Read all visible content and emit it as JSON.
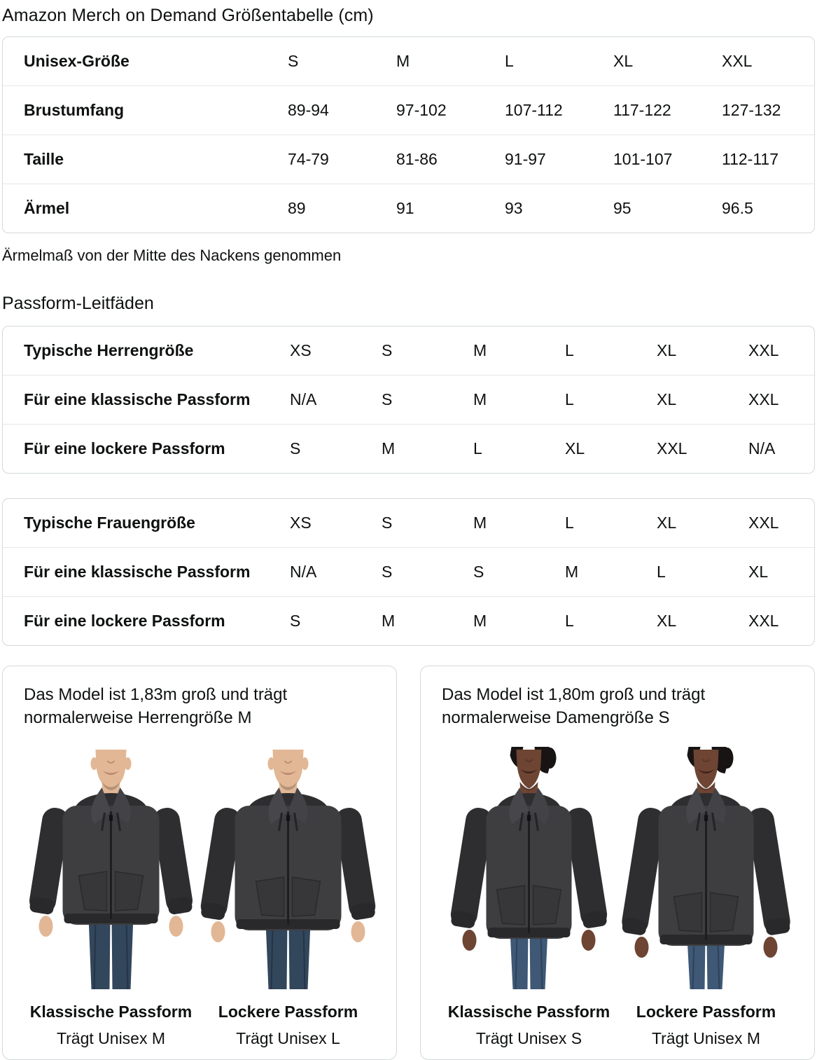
{
  "page_title": "Amazon Merch on Demand Größentabelle (cm)",
  "size_table": {
    "header_label": "Unisex-Größe",
    "header_values": [
      "S",
      "M",
      "L",
      "XL",
      "XXL"
    ],
    "rows": [
      {
        "label": "Brustumfang",
        "values": [
          "89-94",
          "97-102",
          "107-112",
          "117-122",
          "127-132"
        ]
      },
      {
        "label": "Taille",
        "values": [
          "74-79",
          "81-86",
          "91-97",
          "101-107",
          "112-117"
        ]
      },
      {
        "label": "Ärmel",
        "values": [
          "89",
          "91",
          "93",
          "95",
          "96.5"
        ]
      }
    ]
  },
  "sleeve_note": "Ärmelmaß von der Mitte des Nackens genommen",
  "fit_guides_heading": "Passform-Leitfäden",
  "fit_tables": [
    {
      "rows": [
        {
          "label": "Typische Herrengröße",
          "values": [
            "XS",
            "S",
            "M",
            "L",
            "XL",
            "XXL"
          ]
        },
        {
          "label": "Für eine klassische Passform",
          "values": [
            "N/A",
            "S",
            "M",
            "L",
            "XL",
            "XXL"
          ]
        },
        {
          "label": "Für eine lockere Passform",
          "values": [
            "S",
            "M",
            "L",
            "XL",
            "XXL",
            "N/A"
          ]
        }
      ]
    },
    {
      "rows": [
        {
          "label": "Typische Frauengröße",
          "values": [
            "XS",
            "S",
            "M",
            "L",
            "XL",
            "XXL"
          ]
        },
        {
          "label": "Für eine klassische Passform",
          "values": [
            "N/A",
            "S",
            "S",
            "M",
            "L",
            "XL"
          ]
        },
        {
          "label": "Für eine lockere Passform",
          "values": [
            "S",
            "M",
            "M",
            "L",
            "XL",
            "XXL"
          ]
        }
      ]
    }
  ],
  "model_cards": [
    {
      "description": "Das Model ist 1,83m groß und trägt normalerweise Herrengröße M",
      "photos": [
        {
          "fit_label": "Klassische Passform",
          "size_label": "Trägt Unisex M",
          "model": "male",
          "fit": "classic"
        },
        {
          "fit_label": "Lockere Passform",
          "size_label": "Trägt Unisex L",
          "model": "male",
          "fit": "loose"
        }
      ]
    },
    {
      "description": "Das Model ist 1,80m groß und trägt normalerweise Damengröße S",
      "photos": [
        {
          "fit_label": "Klassische Passform",
          "size_label": "Trägt Unisex S",
          "model": "female",
          "fit": "classic"
        },
        {
          "fit_label": "Lockere Passform",
          "size_label": "Trägt Unisex M",
          "model": "female",
          "fit": "loose"
        }
      ]
    }
  ],
  "palette": {
    "text": "#0f1111",
    "table_border": "#d5d9d9",
    "row_divider": "#e7e7e7",
    "hoodie": "#3e3e40",
    "hoodie_shadow": "#2e2e30",
    "hoodie_trim": "#29292b",
    "hoodie_lapel": "#47474b",
    "denim_men": "#32465c",
    "denim_women": "#3e5876",
    "skin_light": "#e2b795",
    "skin_dark": "#6e4433",
    "hair_dark": "#171413"
  }
}
